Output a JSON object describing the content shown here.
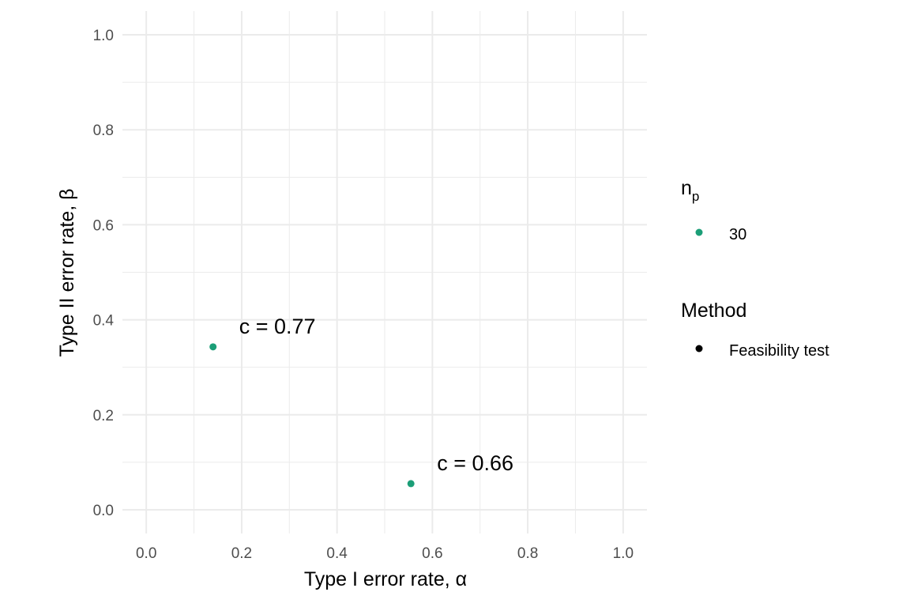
{
  "chart_data": {
    "type": "scatter",
    "xlabel": "Type I error rate, α",
    "ylabel": "Type II error rate, β",
    "xlim": [
      -0.05,
      1.05
    ],
    "ylim": [
      -0.05,
      1.05
    ],
    "x_ticks": [
      "0.0",
      "0.2",
      "0.4",
      "0.6",
      "0.8",
      "1.0"
    ],
    "y_ticks": [
      "0.0",
      "0.2",
      "0.4",
      "0.6",
      "0.8",
      "1.0"
    ],
    "grid": true,
    "points": [
      {
        "x": 0.14,
        "y": 0.343,
        "label": "c =  0.77",
        "n_p": "30",
        "method": "Feasibility test"
      },
      {
        "x": 0.555,
        "y": 0.055,
        "label": "c =  0.66",
        "n_p": "30",
        "method": "Feasibility test"
      }
    ],
    "legend_placement": "right",
    "legends": [
      {
        "title_main": "n",
        "title_sub": "p",
        "entries": [
          {
            "label": "30",
            "color": "#1b9e77"
          }
        ]
      },
      {
        "title": "Method",
        "entries": [
          {
            "label": "Feasibility test",
            "color": "#000000"
          }
        ]
      }
    ],
    "point_color": "#1b9e77",
    "grid_color": "#ebebeb"
  }
}
